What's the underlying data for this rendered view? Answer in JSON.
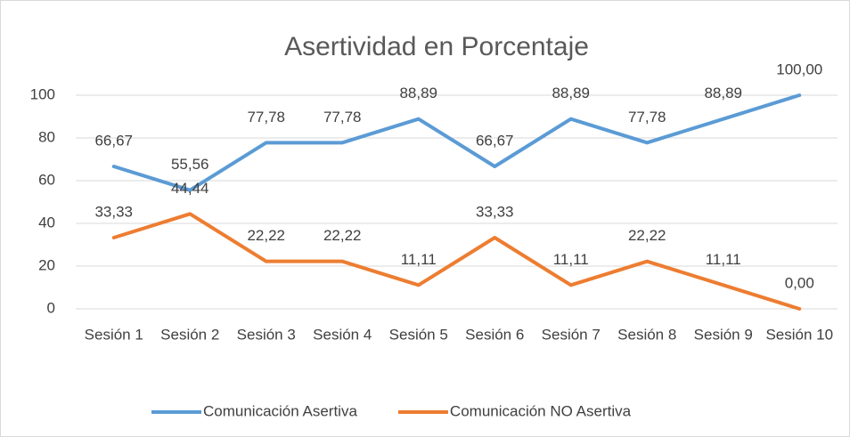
{
  "chart_data": {
    "type": "line",
    "title": "Asertividad en Porcentaje",
    "categories": [
      "Sesión 1",
      "Sesión 2",
      "Sesión 3",
      "Sesión 4",
      "Sesión 5",
      "Sesión 6",
      "Sesión 7",
      "Sesión 8",
      "Sesión 9",
      "Sesión 10"
    ],
    "series": [
      {
        "name": "Comunicación Asertiva",
        "color": "#5b9bd5",
        "values": [
          66.67,
          55.56,
          77.78,
          77.78,
          88.89,
          66.67,
          88.89,
          77.78,
          88.89,
          100
        ],
        "value_labels": [
          "66,67",
          "55,56",
          "77,78",
          "77,78",
          "88,89",
          "66,67",
          "88,89",
          "77,78",
          "88,89",
          "100,00"
        ]
      },
      {
        "name": "Comunicación NO Asertiva",
        "color": "#ed7d31",
        "values": [
          33.33,
          44.44,
          22.22,
          22.22,
          11.11,
          33.33,
          11.11,
          22.22,
          11.11,
          0
        ],
        "value_labels": [
          "33,33",
          "44,44",
          "22,22",
          "22,22",
          "11,11",
          "33,33",
          "11,11",
          "22,22",
          "11,11",
          "0,00"
        ]
      }
    ],
    "ylim": [
      0,
      100
    ],
    "yticks": [
      0,
      20,
      40,
      60,
      80,
      100
    ],
    "grid": true,
    "legend": "bottom"
  }
}
